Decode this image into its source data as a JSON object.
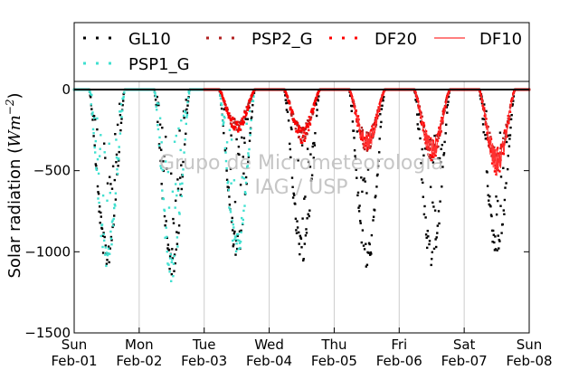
{
  "chart_data": {
    "type": "scatter",
    "title": "",
    "xlabel": "",
    "ylabel": "Solar radiation (Wm⁻²)",
    "ylabel_parts": {
      "main": "Solar radiation (",
      "unit": "Wm",
      "exp": "−2",
      "close": ")"
    },
    "x_range_days": [
      0,
      7
    ],
    "ylim": [
      -1500,
      50
    ],
    "yticks": [
      -1500,
      -1000,
      -500,
      0
    ],
    "xticks": [
      {
        "day": 0,
        "line1": "Sun",
        "line2": "Feb-01"
      },
      {
        "day": 1,
        "line1": "Mon",
        "line2": "Feb-02"
      },
      {
        "day": 2,
        "line1": "Tue",
        "line2": "Feb-03"
      },
      {
        "day": 3,
        "line1": "Wed",
        "line2": "Feb-04"
      },
      {
        "day": 4,
        "line1": "Thu",
        "line2": "Feb-05"
      },
      {
        "day": 5,
        "line1": "Fri",
        "line2": "Feb-06"
      },
      {
        "day": 6,
        "line1": "Sat",
        "line2": "Feb-07"
      },
      {
        "day": 7,
        "line1": "Sun",
        "line2": "Feb-08"
      }
    ],
    "grid": "vertical",
    "zero_line": true,
    "legend_position": "top",
    "watermark": {
      "line1": "Grupo de Micrometeorologia",
      "line2": "IAG / USP"
    },
    "series": [
      {
        "name": "GL10",
        "color": "#000000",
        "marker": "dot",
        "days": [
          0,
          1,
          2,
          3,
          4,
          5,
          6
        ],
        "peaks": [
          -1100,
          -1150,
          -1050,
          -1080,
          -1120,
          -1130,
          -1050
        ]
      },
      {
        "name": "PSP1_G",
        "color": "#40e0d0",
        "marker": "dot",
        "days": [
          0,
          1,
          2
        ],
        "peaks": [
          -1100,
          -1200,
          -1050
        ]
      },
      {
        "name": "PSP2_G",
        "color": "#b22222",
        "marker": "dot",
        "days": [
          2,
          3,
          4,
          5,
          6
        ],
        "peaks": [
          -250,
          -300,
          -350,
          -400,
          -480
        ]
      },
      {
        "name": "DF20",
        "color": "#ff0000",
        "marker": "dot",
        "days": [
          2,
          3,
          4,
          5,
          6
        ],
        "peaks": [
          -250,
          -300,
          -350,
          -400,
          -480
        ]
      },
      {
        "name": "DF10",
        "color": "#ff3030",
        "marker": "line",
        "days": [
          4,
          5,
          6
        ],
        "peaks": [
          -350,
          -400,
          -480
        ]
      }
    ]
  }
}
